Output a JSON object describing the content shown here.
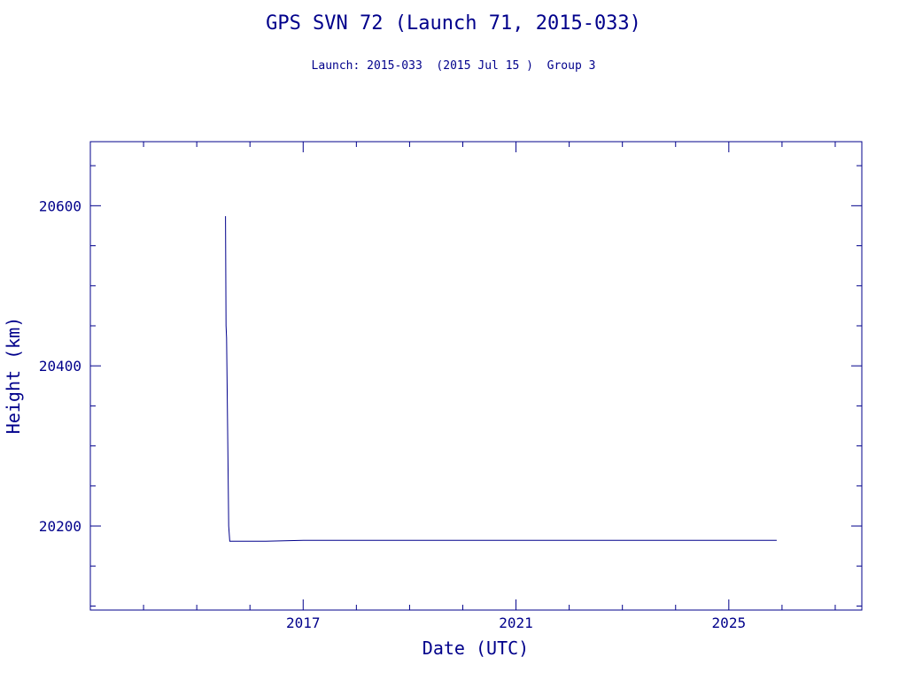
{
  "chart_data": {
    "type": "line",
    "title": "GPS SVN 72 (Launch 71, 2015-033)",
    "subtitle": "Launch: 2015-033  (2015 Jul 15 )  Group 3",
    "xlabel": "Date (UTC)",
    "ylabel": "Height (km)",
    "xlim": [
      2013.0,
      2027.5
    ],
    "ylim": [
      20095,
      20680
    ],
    "x_ticks": [
      2017,
      2021,
      2025
    ],
    "x_tick_labels": [
      "2017",
      "2021",
      "2025"
    ],
    "y_ticks": [
      20200,
      20400,
      20600
    ],
    "y_tick_labels": [
      "20200",
      "20400",
      "20600"
    ],
    "grid": false,
    "color": "#00008b",
    "series": [
      {
        "points": [
          [
            2015.54,
            20587
          ],
          [
            2015.55,
            20450
          ],
          [
            2015.56,
            20435
          ],
          [
            2015.58,
            20320
          ],
          [
            2015.6,
            20200
          ],
          [
            2015.62,
            20181
          ],
          [
            2016.3,
            20181
          ],
          [
            2017.0,
            20182
          ],
          [
            2017.8,
            20182
          ],
          [
            2018.3,
            20182
          ],
          [
            2019.0,
            20182
          ],
          [
            2019.8,
            20182
          ],
          [
            2020.3,
            20182
          ],
          [
            2021.0,
            20182
          ],
          [
            2021.8,
            20182
          ],
          [
            2022.3,
            20182
          ],
          [
            2023.0,
            20182
          ],
          [
            2023.8,
            20182
          ],
          [
            2024.3,
            20182
          ],
          [
            2025.0,
            20182
          ],
          [
            2025.5,
            20182
          ],
          [
            2025.9,
            20182
          ]
        ]
      }
    ]
  }
}
